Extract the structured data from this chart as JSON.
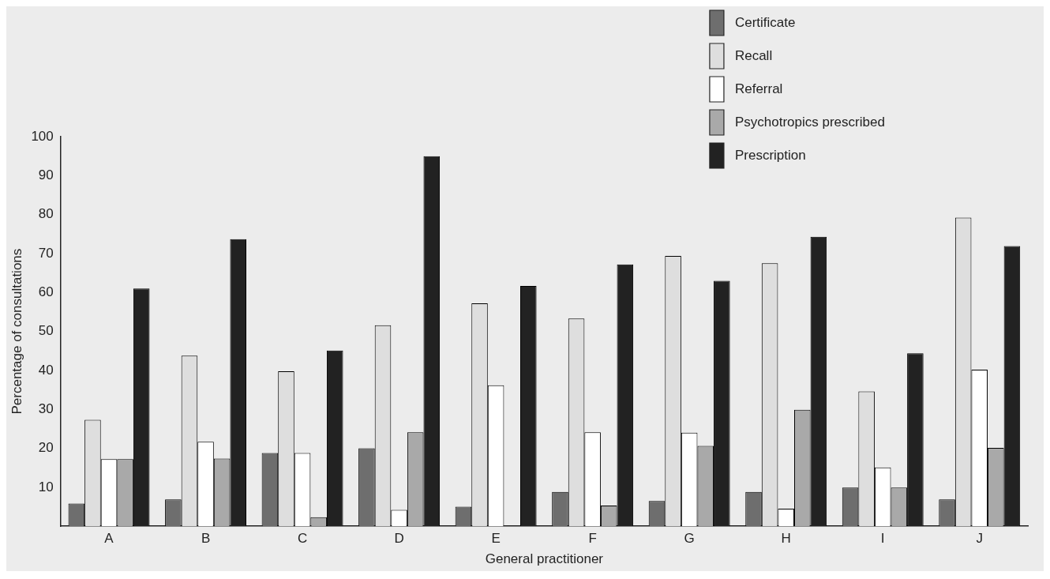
{
  "chart_data": {
    "type": "bar",
    "xlabel": "General practitioner",
    "ylabel": "Percentage of consultations",
    "categories": [
      "A",
      "B",
      "C",
      "D",
      "E",
      "F",
      "G",
      "H",
      "I",
      "J"
    ],
    "series": [
      {
        "name": "Certificate",
        "color": "#6e6e6e",
        "values": [
          5.8,
          6.9,
          18.8,
          20,
          5,
          8.8,
          6.5,
          8.8,
          9.9,
          6.9
        ]
      },
      {
        "name": "Recall",
        "color": "#dedede",
        "values": [
          27.3,
          43.8,
          39.8,
          51.6,
          57.2,
          53.3,
          69.4,
          67.5,
          34.6,
          79.2
        ]
      },
      {
        "name": "Referral",
        "color": "#ffffff",
        "values": [
          17.2,
          21.7,
          18.8,
          4.2,
          36.2,
          24.1,
          24,
          4.5,
          15.1,
          40.2
        ]
      },
      {
        "name": "Psychotropics prescribed",
        "color": "#a9a9a9",
        "values": [
          17.2,
          17.4,
          2.3,
          24.1,
          0,
          5.3,
          20.6,
          29.9,
          9.9,
          20.1
        ]
      },
      {
        "name": "Prescription",
        "color": "#222222",
        "values": [
          61,
          73.7,
          45.1,
          95,
          61.7,
          67.2,
          63,
          74.3,
          44.4,
          71.9
        ]
      }
    ],
    "ylim": [
      0,
      100
    ],
    "yticks": [
      10,
      20,
      30,
      40,
      50,
      60,
      70,
      80,
      90,
      100
    ],
    "grid": false,
    "legend": "top"
  }
}
